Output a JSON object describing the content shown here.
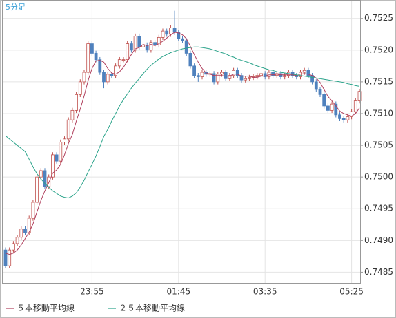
{
  "chart_data": {
    "type": "candlestick",
    "title": "5分足",
    "x": [
      null,
      null,
      null,
      null,
      null,
      null,
      null,
      null,
      null,
      null,
      null,
      null,
      null,
      null,
      null,
      null,
      null,
      null,
      null,
      null,
      null,
      null,
      "23:55",
      null,
      null,
      null,
      null,
      null,
      null,
      null,
      null,
      null,
      null,
      null,
      null,
      null,
      null,
      null,
      null,
      null,
      null,
      null,
      null,
      null,
      "01:45",
      null,
      null,
      null,
      null,
      null,
      null,
      null,
      null,
      null,
      null,
      null,
      null,
      null,
      null,
      null,
      null,
      null,
      null,
      null,
      null,
      null,
      "03:35",
      null,
      null,
      null,
      null,
      null,
      null,
      null,
      null,
      null,
      null,
      null,
      null,
      null,
      null,
      null,
      null,
      null,
      null,
      null,
      null,
      null,
      "05:25",
      null,
      null
    ],
    "open": [
      0.74885,
      0.7486,
      0.74885,
      0.74895,
      0.74905,
      0.74918,
      0.74912,
      0.74935,
      0.7496,
      0.75,
      0.7501,
      0.74985,
      0.75,
      0.75035,
      0.75025,
      0.75055,
      0.7506,
      0.7509,
      0.75105,
      0.7513,
      0.7515,
      0.75165,
      0.7521,
      0.75195,
      0.75185,
      0.75165,
      0.7515,
      0.75162,
      0.7516,
      0.75175,
      0.75185,
      0.75185,
      0.7521,
      0.752,
      0.75222,
      0.75205,
      0.75208,
      0.752,
      0.75212,
      0.75208,
      0.7522,
      0.7523,
      0.75225,
      0.75235,
      0.75228,
      0.75218,
      0.75215,
      0.75195,
      0.75175,
      0.7516,
      0.75158,
      0.75165,
      0.75162,
      0.75163,
      0.7515,
      0.75162,
      0.75165,
      0.75155,
      0.7516,
      0.75168,
      0.7516,
      0.75153,
      0.75155,
      0.75157,
      0.75158,
      0.7516,
      0.75163,
      0.75158,
      0.75165,
      0.7516,
      0.75163,
      0.75158,
      0.7516,
      0.75165,
      0.7516,
      0.75158,
      0.75165,
      0.75168,
      0.7516,
      0.7515,
      0.75138,
      0.7513,
      0.75112,
      0.75105,
      0.75115,
      0.75098,
      0.75092,
      0.7509,
      0.75095,
      0.75103,
      0.7512
    ],
    "high": [
      0.74889,
      0.74889,
      0.74899,
      0.74909,
      0.74922,
      0.74922,
      0.74939,
      0.74964,
      0.75004,
      0.75014,
      0.75014,
      0.75004,
      0.75039,
      0.75039,
      0.75059,
      0.75064,
      0.75094,
      0.75109,
      0.75134,
      0.75154,
      0.75169,
      0.75214,
      0.75214,
      0.75199,
      0.75189,
      0.75169,
      0.75166,
      0.75166,
      0.75179,
      0.75189,
      0.75189,
      0.75214,
      0.75214,
      0.75226,
      0.75226,
      0.75212,
      0.75212,
      0.75216,
      0.75216,
      0.75224,
      0.75234,
      0.75234,
      0.75239,
      0.75262,
      0.75232,
      0.75222,
      0.75219,
      0.75199,
      0.75179,
      0.75164,
      0.75169,
      0.75169,
      0.75167,
      0.75167,
      0.75166,
      0.75169,
      0.75169,
      0.75164,
      0.75172,
      0.75172,
      0.75164,
      0.75159,
      0.75161,
      0.75162,
      0.75164,
      0.75167,
      0.75167,
      0.75169,
      0.75169,
      0.75167,
      0.75167,
      0.75164,
      0.75169,
      0.75169,
      0.75164,
      0.75169,
      0.75172,
      0.75172,
      0.75164,
      0.75154,
      0.75142,
      0.75134,
      0.75116,
      0.75119,
      0.75119,
      0.75102,
      0.75096,
      0.75099,
      0.75107,
      0.75124,
      0.75139
    ],
    "low": [
      0.74856,
      0.74856,
      0.74881,
      0.74891,
      0.74901,
      0.74908,
      0.74908,
      0.74931,
      0.74956,
      0.74996,
      0.74981,
      0.74981,
      0.74996,
      0.75021,
      0.75021,
      0.75051,
      0.75056,
      0.75086,
      0.75101,
      0.75126,
      0.75146,
      0.75161,
      0.75191,
      0.75181,
      0.75161,
      0.7514,
      0.75146,
      0.75156,
      0.75156,
      0.75171,
      0.75181,
      0.75181,
      0.75196,
      0.75196,
      0.75201,
      0.75201,
      0.75196,
      0.75196,
      0.75204,
      0.75204,
      0.75216,
      0.75221,
      0.75221,
      0.75224,
      0.75214,
      0.75211,
      0.75191,
      0.75171,
      0.75156,
      0.7515,
      0.75154,
      0.75158,
      0.75158,
      0.75146,
      0.75146,
      0.75158,
      0.75151,
      0.75151,
      0.75156,
      0.75156,
      0.75149,
      0.75149,
      0.75151,
      0.75153,
      0.75154,
      0.75156,
      0.75154,
      0.75154,
      0.75156,
      0.75156,
      0.75154,
      0.75154,
      0.75156,
      0.75156,
      0.75154,
      0.75154,
      0.75161,
      0.75156,
      0.75146,
      0.75134,
      0.75126,
      0.75108,
      0.75101,
      0.75101,
      0.75094,
      0.75088,
      0.75086,
      0.75086,
      0.75091,
      0.75099,
      0.75116
    ],
    "close": [
      0.7486,
      0.74885,
      0.74895,
      0.74905,
      0.74918,
      0.74912,
      0.74935,
      0.7496,
      0.75,
      0.7501,
      0.74985,
      0.75,
      0.75035,
      0.75025,
      0.75055,
      0.7506,
      0.7509,
      0.75105,
      0.7513,
      0.7515,
      0.75165,
      0.7521,
      0.75195,
      0.75185,
      0.75165,
      0.7515,
      0.75162,
      0.7516,
      0.75175,
      0.75185,
      0.75185,
      0.7521,
      0.752,
      0.75222,
      0.75205,
      0.75208,
      0.752,
      0.75212,
      0.75208,
      0.7522,
      0.7523,
      0.75225,
      0.75235,
      0.75228,
      0.75218,
      0.75215,
      0.75195,
      0.75175,
      0.7516,
      0.75158,
      0.75165,
      0.75162,
      0.75163,
      0.7515,
      0.75162,
      0.75165,
      0.75155,
      0.7516,
      0.75168,
      0.7516,
      0.75153,
      0.75155,
      0.75157,
      0.75158,
      0.7516,
      0.75163,
      0.75158,
      0.75165,
      0.7516,
      0.75163,
      0.75158,
      0.7516,
      0.75165,
      0.7516,
      0.75158,
      0.75165,
      0.75168,
      0.7516,
      0.7515,
      0.75138,
      0.7513,
      0.75112,
      0.75105,
      0.75115,
      0.75098,
      0.75092,
      0.7509,
      0.75095,
      0.75103,
      0.7512,
      0.75135
    ],
    "up_color": "#c0504d",
    "down_color": "#4f81bd",
    "series": [
      {
        "name": "５本移動平均線",
        "color": "#b0405e",
        "values": [
          0.7488,
          0.74878,
          0.7488,
          0.74885,
          0.74893,
          0.74903,
          0.74913,
          0.74926,
          0.74945,
          0.74963,
          0.74978,
          0.74991,
          0.75006,
          0.75011,
          0.7502,
          0.75035,
          0.75053,
          0.75067,
          0.75088,
          0.75107,
          0.75128,
          0.75152,
          0.75171,
          0.75183,
          0.75184,
          0.75181,
          0.75171,
          0.75164,
          0.75162,
          0.75166,
          0.75173,
          0.75183,
          0.75193,
          0.75202,
          0.75204,
          0.75209,
          0.75207,
          0.75209,
          0.75207,
          0.7521,
          0.75214,
          0.75219,
          0.75224,
          0.75228,
          0.75227,
          0.75224,
          0.75218,
          0.75206,
          0.75193,
          0.75181,
          0.75171,
          0.75164,
          0.75162,
          0.7516,
          0.7516,
          0.7516,
          0.75159,
          0.75159,
          0.75162,
          0.75162,
          0.75159,
          0.75159,
          0.75159,
          0.75157,
          0.75157,
          0.75159,
          0.75159,
          0.75161,
          0.75161,
          0.75162,
          0.75161,
          0.75161,
          0.75161,
          0.75161,
          0.7516,
          0.75162,
          0.75163,
          0.75162,
          0.7516,
          0.75156,
          0.75149,
          0.75138,
          0.75127,
          0.7512,
          0.75112,
          0.75104,
          0.751,
          0.75098,
          0.75096,
          0.751,
          0.75109
        ]
      },
      {
        "name": "２５本移動平均線",
        "color": "#2aa38a",
        "values": [
          0.75065,
          0.7506,
          0.75055,
          0.7505,
          0.75045,
          0.7504,
          0.75028,
          0.75016,
          0.75005,
          0.74997,
          0.7499,
          0.74984,
          0.74978,
          0.74974,
          0.7497,
          0.74968,
          0.74967,
          0.7497,
          0.74975,
          0.74984,
          0.74995,
          0.75008,
          0.7502,
          0.75033,
          0.75048,
          0.75064,
          0.75075,
          0.75088,
          0.751,
          0.75112,
          0.75122,
          0.75131,
          0.7514,
          0.75148,
          0.75155,
          0.75163,
          0.7517,
          0.75176,
          0.75181,
          0.75186,
          0.7519,
          0.75193,
          0.75196,
          0.75198,
          0.752,
          0.75202,
          0.75203,
          0.75204,
          0.75205,
          0.75205,
          0.75204,
          0.75203,
          0.75202,
          0.752,
          0.75198,
          0.75196,
          0.75194,
          0.75191,
          0.75189,
          0.75186,
          0.75184,
          0.75182,
          0.7518,
          0.75177,
          0.75175,
          0.75173,
          0.75171,
          0.75169,
          0.75168,
          0.75166,
          0.75165,
          0.75164,
          0.75163,
          0.75162,
          0.75161,
          0.7516,
          0.75159,
          0.75158,
          0.75157,
          0.75156,
          0.75155,
          0.75154,
          0.75153,
          0.75152,
          0.75151,
          0.7515,
          0.75149,
          0.75147,
          0.75146,
          0.75144,
          0.75143
        ]
      }
    ],
    "ylim": [
      0.74832,
      0.75279
    ],
    "yticks": [
      0.7485,
      {
        "value": 0.749,
        "label": "0.7490"
      },
      0.7495,
      {
        "value": 0.75,
        "label": "0.7500"
      },
      0.7505,
      {
        "value": 0.751,
        "label": "0.7510"
      },
      0.7515,
      {
        "value": 0.752,
        "label": "0.7520"
      },
      0.7525
    ],
    "grid": true
  }
}
